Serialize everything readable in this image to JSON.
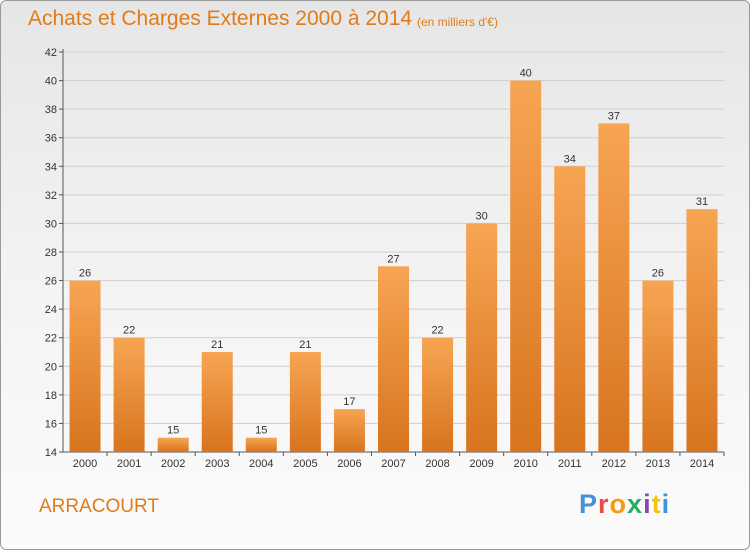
{
  "header": {
    "title": "Achats et Charges Externes 2000 à 2014",
    "subtitle": "(en milliers d'€)"
  },
  "footer": {
    "place": "ARRACOURT",
    "logo": "Proxiti",
    "logo_colors": [
      "#4a90d9",
      "#e74c3c",
      "#f39c12",
      "#27ae60",
      "#8e44ad",
      "#f1c40f",
      "#3498db"
    ]
  },
  "colors": {
    "bar_light": "#f7a553",
    "bar_dark": "#d8741e",
    "accent": "#e07b1a",
    "grid": "#cfcfcf"
  },
  "chart_data": {
    "type": "bar",
    "categories": [
      "2000",
      "2001",
      "2002",
      "2003",
      "2004",
      "2005",
      "2006",
      "2007",
      "2008",
      "2009",
      "2010",
      "2011",
      "2012",
      "2013",
      "2014"
    ],
    "values": [
      26,
      22,
      15,
      21,
      15,
      21,
      17,
      27,
      22,
      30,
      40,
      34,
      37,
      26,
      31
    ],
    "ylim": [
      14,
      42
    ],
    "yticks": [
      14,
      16,
      18,
      20,
      22,
      24,
      26,
      28,
      30,
      32,
      34,
      36,
      38,
      40,
      42
    ],
    "grid": true,
    "data_labels": true
  }
}
